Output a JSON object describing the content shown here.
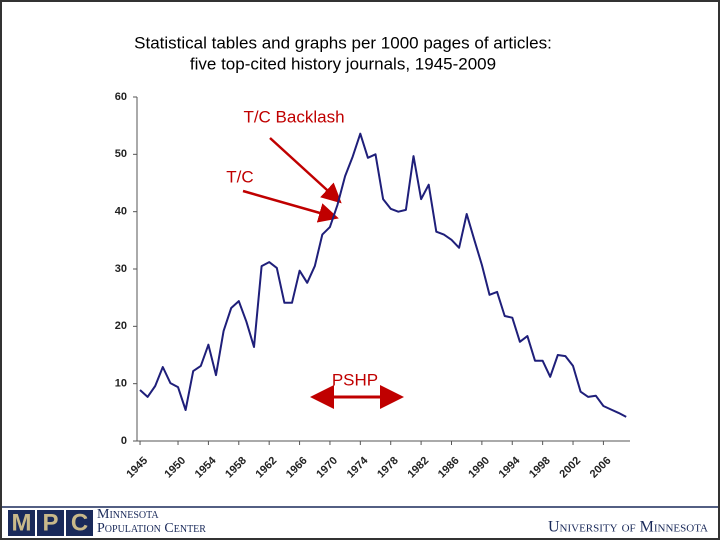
{
  "chart_data": {
    "type": "line",
    "title_lines": [
      "Statistical tables and graphs per 1000 pages of articles:",
      "five top-cited history journals, 1945-2009"
    ],
    "x": [
      1945,
      1946,
      1947,
      1948,
      1949,
      1950,
      1951,
      1952,
      1953,
      1954,
      1955,
      1956,
      1957,
      1958,
      1959,
      1960,
      1961,
      1962,
      1963,
      1964,
      1965,
      1966,
      1967,
      1968,
      1969,
      1970,
      1971,
      1972,
      1973,
      1974,
      1975,
      1976,
      1977,
      1978,
      1979,
      1980,
      1981,
      1982,
      1983,
      1984,
      1985,
      1986,
      1987,
      1988,
      1989,
      1990,
      1991,
      1992,
      1993,
      1994,
      1995,
      1996,
      1997,
      1998,
      1999,
      2000,
      2001,
      2002,
      2003,
      2004,
      2005,
      2006,
      2007,
      2008,
      2009
    ],
    "values": [
      8.9,
      7.7,
      9.6,
      12.9,
      10.1,
      9.4,
      5.4,
      12.2,
      13.1,
      16.8,
      11.5,
      19.2,
      23.2,
      24.4,
      20.8,
      16.4,
      30.5,
      31.2,
      30.2,
      24.1,
      24.1,
      29.7,
      27.6,
      30.5,
      36,
      37.3,
      41.2,
      46.2,
      49.6,
      53.6,
      49.4,
      50,
      42.2,
      40.5,
      40,
      40.3,
      49.7,
      42.2,
      44.7,
      36.5,
      36,
      35.1,
      33.7,
      39.6,
      35.1,
      30.7,
      25.5,
      26,
      21.8,
      21.5,
      17.3,
      18.3,
      14,
      14,
      11.2,
      15,
      14.8,
      13.1,
      8.6,
      7.7,
      7.9,
      6.1,
      5.5,
      4.9,
      4.2
    ],
    "color": "#1f1f7a",
    "xlim": [
      1944.6,
      2009.5
    ],
    "xticks": [
      1945,
      1950,
      1954,
      1958,
      1962,
      1966,
      1970,
      1974,
      1978,
      1982,
      1986,
      1990,
      1994,
      1998,
      2002,
      2006
    ],
    "ylim": [
      0,
      60
    ],
    "yticks": [
      0,
      10,
      20,
      30,
      40,
      50,
      60
    ],
    "annotations": [
      "T/C Backlash",
      "T/C",
      "PSHP"
    ]
  },
  "footer": {
    "logo": [
      "M",
      "P",
      "C"
    ],
    "org_lines": [
      "Minnesota",
      "Population Center"
    ],
    "university": "University of Minnesota"
  }
}
